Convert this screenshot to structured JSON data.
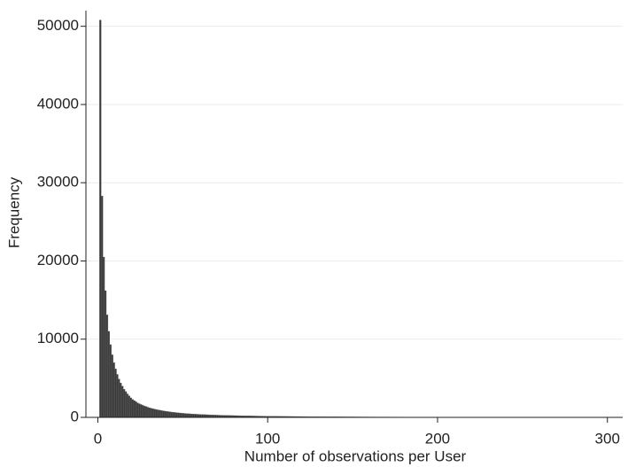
{
  "chart_data": {
    "type": "histogram",
    "xlabel": "Number of observations per User",
    "ylabel": "Frequency",
    "color": "#3a3a3a",
    "grid": true,
    "xlim": [
      -7,
      309
    ],
    "ylim": [
      0,
      52000
    ],
    "xticks": [
      0,
      100,
      200,
      300
    ],
    "yticks": [
      0,
      10000,
      20000,
      30000,
      40000,
      50000
    ],
    "bins": [
      1,
      2,
      3,
      4,
      5,
      6,
      7,
      8,
      9,
      10,
      11,
      12,
      13,
      14,
      15,
      16,
      17,
      18,
      19,
      20,
      21,
      22,
      23,
      24,
      25,
      26,
      27,
      28,
      29,
      30,
      31,
      32,
      33,
      34,
      35,
      36,
      37,
      38,
      39,
      40,
      41,
      42,
      43,
      44,
      45,
      46,
      47,
      48,
      49,
      50,
      51,
      52,
      53,
      54,
      55,
      56,
      57,
      58,
      59,
      60,
      61,
      62,
      63,
      64,
      65,
      66,
      67,
      68,
      69,
      70,
      71,
      72,
      73,
      74,
      75,
      76,
      77,
      78,
      79,
      80,
      81,
      82,
      83,
      84,
      85,
      86,
      87,
      88,
      89,
      90,
      91,
      92,
      93,
      94,
      95,
      96,
      97,
      98,
      99,
      100,
      101,
      102,
      103,
      104,
      105,
      106,
      107,
      108,
      109,
      110,
      111,
      112,
      113,
      114,
      115,
      116,
      117,
      118,
      119,
      120,
      121,
      122,
      123,
      124,
      125,
      126,
      127,
      128,
      129,
      130,
      131,
      132,
      133,
      134,
      135,
      136,
      137,
      138,
      139,
      140,
      141,
      142,
      143,
      144,
      145,
      146,
      147,
      148,
      149,
      150,
      151,
      152,
      153,
      154,
      155,
      156,
      157,
      158,
      159,
      160,
      161,
      162,
      163,
      164,
      165,
      166,
      167,
      168,
      169,
      170,
      171,
      172,
      173,
      174,
      175,
      176,
      177,
      178,
      179,
      180,
      181,
      182,
      183,
      184,
      185,
      186,
      187,
      188,
      189,
      190,
      191,
      192,
      193,
      194,
      195,
      196,
      197,
      198,
      199,
      200,
      201,
      202,
      203,
      204,
      205,
      206,
      207,
      208,
      209,
      210,
      211,
      212,
      213,
      214,
      215,
      216,
      217,
      218,
      219,
      220,
      221,
      222,
      223,
      224,
      225,
      226,
      227,
      228,
      229,
      230,
      231,
      232,
      233,
      234,
      235,
      236,
      237,
      238,
      239,
      240,
      241,
      242,
      243,
      244,
      245,
      246,
      247,
      248,
      249,
      250,
      251,
      252,
      253,
      254,
      255,
      256,
      257,
      258,
      259,
      260,
      261,
      262,
      263,
      264,
      265,
      266,
      267,
      268,
      269,
      270,
      271,
      272,
      273,
      274,
      275,
      276,
      277,
      278,
      279,
      280,
      281,
      282,
      283,
      284,
      285,
      286,
      287,
      288,
      289,
      290,
      291,
      292,
      293,
      294,
      295,
      296,
      297,
      298,
      299,
      300,
      301
    ],
    "values": [
      50800,
      28300,
      20500,
      16200,
      13100,
      11000,
      9300,
      8000,
      7000,
      6200,
      5500,
      4900,
      4400,
      4000,
      3600,
      3300,
      3000,
      2750,
      2500,
      2300,
      2150,
      2000,
      1850,
      1750,
      1650,
      1550,
      1450,
      1380,
      1300,
      1230,
      1170,
      1110,
      1060,
      1010,
      960,
      920,
      880,
      840,
      800,
      770,
      740,
      710,
      680,
      650,
      630,
      600,
      580,
      560,
      540,
      520,
      500,
      485,
      470,
      455,
      440,
      425,
      410,
      400,
      390,
      380,
      370,
      360,
      350,
      340,
      330,
      320,
      310,
      300,
      295,
      290,
      280,
      275,
      270,
      260,
      255,
      250,
      245,
      240,
      235,
      230,
      225,
      220,
      215,
      210,
      205,
      200,
      196,
      192,
      188,
      184,
      180,
      176,
      172,
      168,
      165,
      162,
      159,
      156,
      153,
      150,
      147,
      144,
      141,
      139,
      136,
      134,
      131,
      129,
      127,
      125,
      123,
      121,
      119,
      117,
      115,
      113,
      111,
      109,
      107,
      105,
      103,
      101,
      99,
      97,
      96,
      94,
      93,
      91,
      90,
      88,
      87,
      85,
      84,
      83,
      81,
      80,
      79,
      78,
      77,
      75,
      74,
      73,
      72,
      71,
      70,
      69,
      68,
      67,
      66,
      65,
      64,
      63,
      62,
      61,
      60,
      59,
      58,
      57,
      57,
      56,
      55,
      54,
      53,
      53,
      52,
      51,
      50,
      50,
      49,
      48,
      48,
      47,
      46,
      46,
      45,
      44,
      44,
      43,
      43,
      42,
      41,
      41,
      40,
      40,
      39,
      39,
      38,
      38,
      37,
      37,
      36,
      36,
      35,
      35,
      34,
      34,
      33,
      33,
      32,
      32,
      32,
      31,
      31,
      30,
      30,
      30,
      29,
      29,
      28,
      28,
      28,
      27,
      27,
      27,
      26,
      26,
      26,
      25,
      25,
      25,
      24,
      24,
      24,
      23,
      23,
      23,
      23,
      22,
      22,
      22,
      21,
      21,
      21,
      21,
      20,
      20,
      20,
      20,
      19,
      19,
      19,
      19,
      18,
      18,
      18,
      18,
      18,
      17,
      17,
      17,
      17,
      16,
      16,
      16,
      16,
      16,
      15,
      15,
      15,
      15,
      15,
      14,
      14,
      14,
      14,
      14,
      14,
      13,
      13,
      13,
      13,
      13,
      13,
      12,
      12,
      12,
      12,
      12,
      12,
      11,
      11,
      11,
      11,
      11,
      11,
      11,
      10,
      10,
      10,
      10,
      10,
      10,
      10,
      9,
      9,
      9,
      9,
      9,
      9,
      9
    ]
  }
}
